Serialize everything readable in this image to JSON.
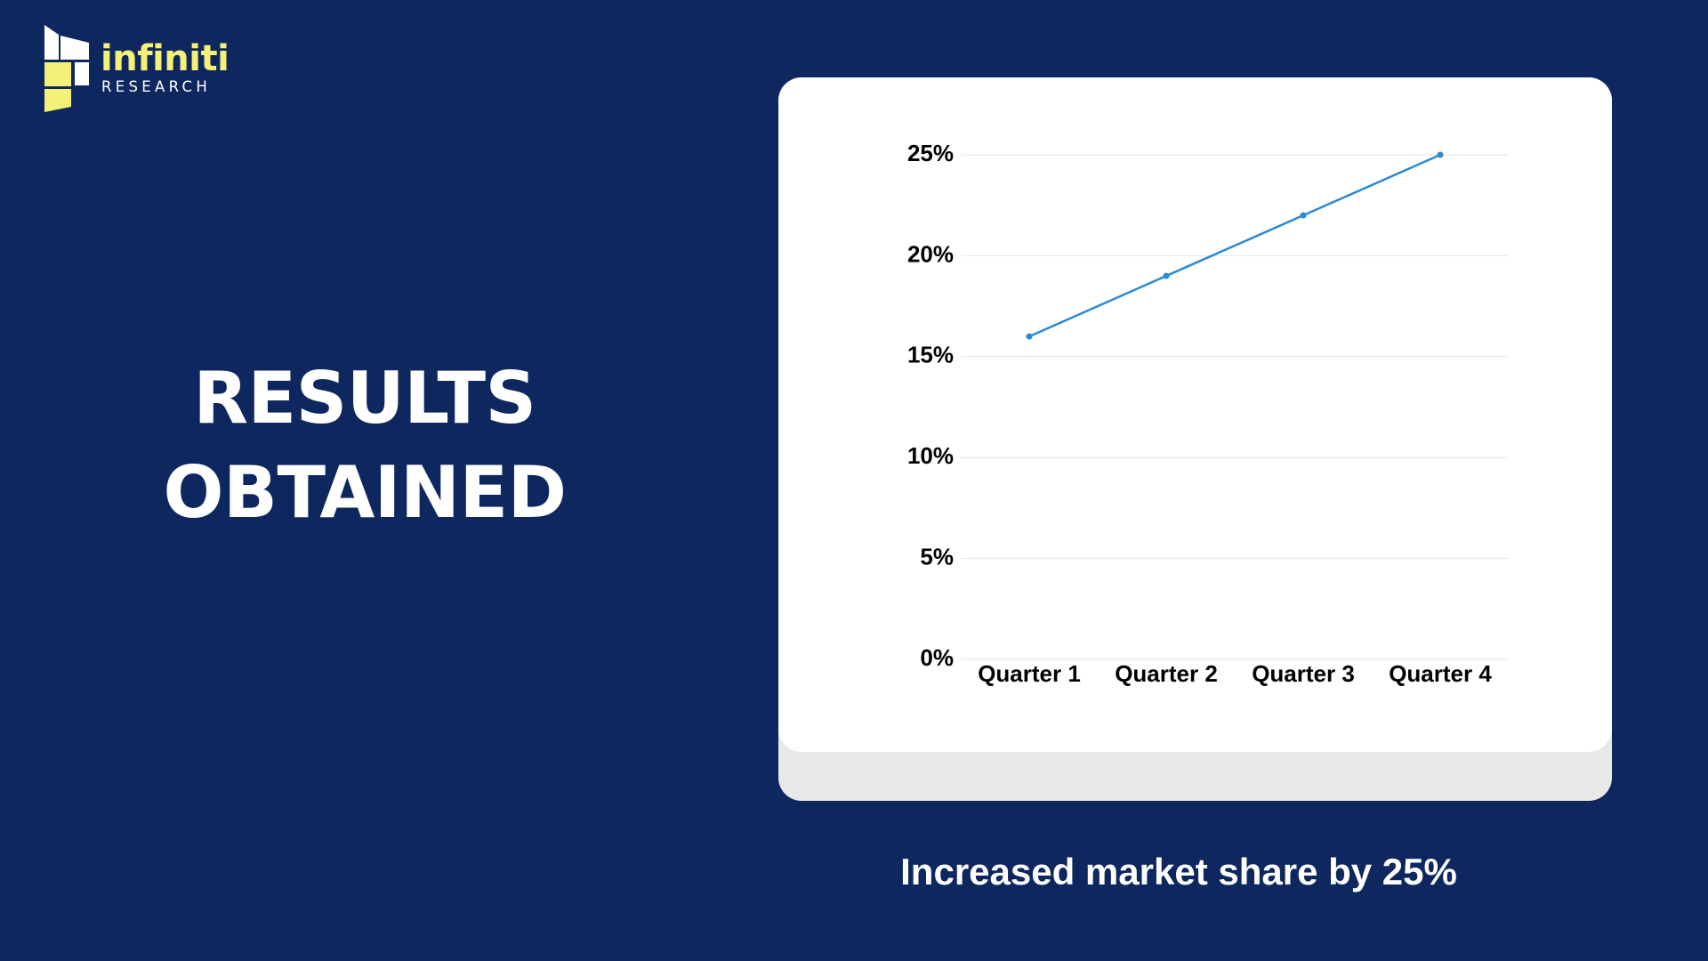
{
  "logo": {
    "brand": "infiniti",
    "subtitle": "RESEARCH",
    "icon": "building-window-icon",
    "colors": {
      "yellow": "#f4f178",
      "white": "#ffffff"
    }
  },
  "headline": {
    "line1": "RESULTS",
    "line2": "OBTAINED"
  },
  "caption": "Increased market share by 25%",
  "colors": {
    "background": "#0e285f",
    "card": "#ffffff",
    "card_shadow": "#e8e8e9",
    "line": "#2b8ad2",
    "grid": "#e6e6e6",
    "text": "#ffffff"
  },
  "chart_data": {
    "type": "line",
    "categories": [
      "Quarter 1",
      "Quarter 2",
      "Quarter 3",
      "Quarter 4"
    ],
    "series": [
      {
        "values": [
          16,
          19,
          22,
          25
        ],
        "color": "#2b8ad2"
      }
    ],
    "yticks": [
      "0%",
      "5%",
      "10%",
      "15%",
      "20%",
      "25%"
    ],
    "ylim": [
      0,
      25
    ],
    "y_unit": "%",
    "grid": true,
    "markers": true,
    "title": "",
    "xlabel": "",
    "ylabel": ""
  }
}
